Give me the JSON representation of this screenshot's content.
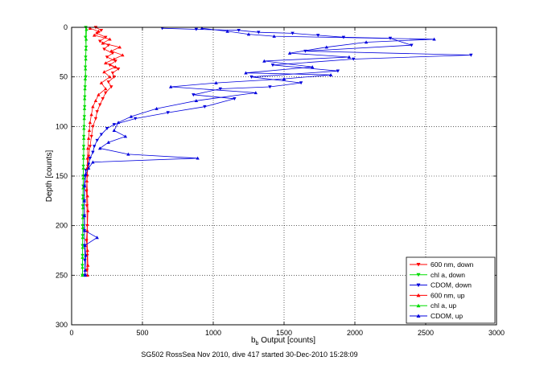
{
  "chart_data": {
    "type": "scatter",
    "title": "",
    "xlabel_main": "b",
    "xlabel_sub": "b",
    "xlabel_rest": " Output [counts]",
    "ylabel": "Depth [counts]",
    "xlim": [
      0,
      3000
    ],
    "ylim": [
      0,
      300
    ],
    "y_reversed": true,
    "grid": true,
    "xticks": [
      0,
      500,
      1000,
      1500,
      2000,
      2500,
      3000
    ],
    "xtick_labels": [
      "0",
      "500",
      "1000",
      "1500",
      "2000",
      "2500",
      "3000"
    ],
    "yticks": [
      0,
      50,
      100,
      150,
      200,
      250,
      300
    ],
    "ytick_labels": [
      "0",
      "50",
      "100",
      "150",
      "200",
      "250",
      "300"
    ],
    "legend_position": "bottom-right",
    "footer": "SG502 RossSea Nov 2010, dive 417 started 30-Dec-2010 15:28:09",
    "series": [
      {
        "name": "600 nm, down",
        "color": "#ff0000",
        "marker": "triangle-down",
        "points": [
          [
            170,
            0
          ],
          [
            210,
            3
          ],
          [
            180,
            6
          ],
          [
            240,
            10
          ],
          [
            200,
            14
          ],
          [
            260,
            18
          ],
          [
            230,
            22
          ],
          [
            290,
            26
          ],
          [
            250,
            30
          ],
          [
            310,
            34
          ],
          [
            270,
            38
          ],
          [
            330,
            42
          ],
          [
            290,
            46
          ],
          [
            300,
            50
          ],
          [
            260,
            55
          ],
          [
            280,
            60
          ],
          [
            240,
            66
          ],
          [
            220,
            72
          ],
          [
            200,
            78
          ],
          [
            180,
            85
          ],
          [
            170,
            92
          ],
          [
            150,
            100
          ],
          [
            140,
            110
          ],
          [
            130,
            120
          ],
          [
            120,
            130
          ],
          [
            115,
            140
          ],
          [
            110,
            150
          ],
          [
            105,
            165
          ],
          [
            108,
            180
          ],
          [
            110,
            200
          ],
          [
            105,
            215
          ],
          [
            110,
            230
          ],
          [
            108,
            245
          ]
        ]
      },
      {
        "name": "chl a, down",
        "color": "#00dd00",
        "marker": "triangle-down",
        "points": [
          [
            100,
            0
          ],
          [
            98,
            10
          ],
          [
            102,
            20
          ],
          [
            99,
            30
          ],
          [
            97,
            40
          ],
          [
            100,
            50
          ],
          [
            95,
            60
          ],
          [
            93,
            70
          ],
          [
            92,
            80
          ],
          [
            90,
            90
          ],
          [
            88,
            100
          ],
          [
            86,
            110
          ],
          [
            85,
            120
          ],
          [
            84,
            130
          ],
          [
            83,
            140
          ],
          [
            82,
            150
          ],
          [
            81,
            160
          ],
          [
            80,
            170
          ],
          [
            79,
            180
          ],
          [
            79,
            190
          ],
          [
            78,
            200
          ],
          [
            78,
            210
          ],
          [
            77,
            220
          ],
          [
            77,
            230
          ],
          [
            76,
            240
          ],
          [
            76,
            250
          ]
        ]
      },
      {
        "name": "CDOM, down",
        "color": "#0000dd",
        "marker": "triangle-down",
        "points": [
          [
            640,
            1
          ],
          [
            880,
            2
          ],
          [
            1180,
            3
          ],
          [
            1320,
            5
          ],
          [
            1560,
            6
          ],
          [
            1740,
            8
          ],
          [
            1920,
            10
          ],
          [
            2250,
            11
          ],
          [
            2820,
            28
          ],
          [
            2400,
            18
          ],
          [
            1650,
            24
          ],
          [
            1990,
            32
          ],
          [
            1420,
            38
          ],
          [
            1880,
            44
          ],
          [
            1270,
            50
          ],
          [
            1620,
            56
          ],
          [
            1050,
            62
          ],
          [
            1400,
            60
          ],
          [
            860,
            68
          ],
          [
            1150,
            72
          ],
          [
            940,
            80
          ],
          [
            680,
            86
          ],
          [
            450,
            92
          ],
          [
            300,
            98
          ],
          [
            250,
            102
          ],
          [
            210,
            108
          ],
          [
            180,
            114
          ],
          [
            160,
            120
          ],
          [
            150,
            126
          ],
          [
            130,
            132
          ],
          [
            120,
            138
          ],
          [
            100,
            144
          ],
          [
            95,
            150
          ],
          [
            90,
            160
          ],
          [
            90,
            175
          ],
          [
            90,
            190
          ],
          [
            90,
            205
          ],
          [
            92,
            220
          ],
          [
            93,
            235
          ],
          [
            95,
            250
          ]
        ]
      },
      {
        "name": "600 nm, up",
        "color": "#ff0000",
        "marker": "triangle-up",
        "points": [
          [
            130,
            1
          ],
          [
            190,
            4
          ],
          [
            160,
            8
          ],
          [
            270,
            12
          ],
          [
            220,
            16
          ],
          [
            340,
            20
          ],
          [
            280,
            24
          ],
          [
            360,
            28
          ],
          [
            300,
            32
          ],
          [
            240,
            36
          ],
          [
            310,
            40
          ],
          [
            230,
            45
          ],
          [
            270,
            50
          ],
          [
            210,
            56
          ],
          [
            240,
            62
          ],
          [
            190,
            68
          ],
          [
            170,
            74
          ],
          [
            150,
            80
          ],
          [
            140,
            88
          ],
          [
            130,
            96
          ],
          [
            125,
            104
          ],
          [
            120,
            112
          ],
          [
            115,
            122
          ],
          [
            112,
            132
          ],
          [
            110,
            142
          ],
          [
            108,
            155
          ],
          [
            112,
            170
          ],
          [
            115,
            185
          ],
          [
            110,
            205
          ],
          [
            112,
            225
          ],
          [
            115,
            240
          ],
          [
            112,
            250
          ]
        ]
      },
      {
        "name": "chl a, up",
        "color": "#00dd00",
        "marker": "triangle-up",
        "points": [
          [
            105,
            2
          ],
          [
            103,
            12
          ],
          [
            101,
            22
          ],
          [
            100,
            32
          ],
          [
            98,
            42
          ],
          [
            96,
            52
          ],
          [
            94,
            62
          ],
          [
            92,
            72
          ],
          [
            91,
            82
          ],
          [
            89,
            92
          ],
          [
            87,
            102
          ],
          [
            86,
            112
          ],
          [
            85,
            122
          ],
          [
            84,
            132
          ],
          [
            83,
            142
          ],
          [
            82,
            152
          ],
          [
            81,
            162
          ],
          [
            80,
            172
          ],
          [
            80,
            182
          ],
          [
            79,
            192
          ],
          [
            79,
            202
          ],
          [
            78,
            212
          ],
          [
            78,
            222
          ],
          [
            77,
            232
          ],
          [
            77,
            242
          ],
          [
            76,
            250
          ]
        ]
      },
      {
        "name": "CDOM, up",
        "color": "#0000dd",
        "marker": "triangle-up",
        "points": [
          [
            920,
            1
          ],
          [
            1100,
            4
          ],
          [
            1250,
            7
          ],
          [
            1430,
            9
          ],
          [
            2560,
            12
          ],
          [
            2080,
            15
          ],
          [
            1800,
            20
          ],
          [
            1540,
            26
          ],
          [
            1960,
            30
          ],
          [
            1360,
            34
          ],
          [
            1700,
            40
          ],
          [
            1230,
            46
          ],
          [
            1830,
            48
          ],
          [
            1500,
            52
          ],
          [
            1020,
            56
          ],
          [
            700,
            60
          ],
          [
            1300,
            66
          ],
          [
            880,
            74
          ],
          [
            600,
            82
          ],
          [
            420,
            90
          ],
          [
            330,
            96
          ],
          [
            300,
            104
          ],
          [
            380,
            110
          ],
          [
            260,
            116
          ],
          [
            200,
            122
          ],
          [
            400,
            128
          ],
          [
            890,
            132
          ],
          [
            150,
            136
          ],
          [
            120,
            142
          ],
          [
            100,
            148
          ],
          [
            92,
            160
          ],
          [
            90,
            175
          ],
          [
            91,
            190
          ],
          [
            92,
            205
          ],
          [
            94,
            220
          ],
          [
            100,
            230
          ],
          [
            180,
            212
          ],
          [
            95,
            245
          ],
          [
            96,
            250
          ]
        ]
      }
    ]
  }
}
